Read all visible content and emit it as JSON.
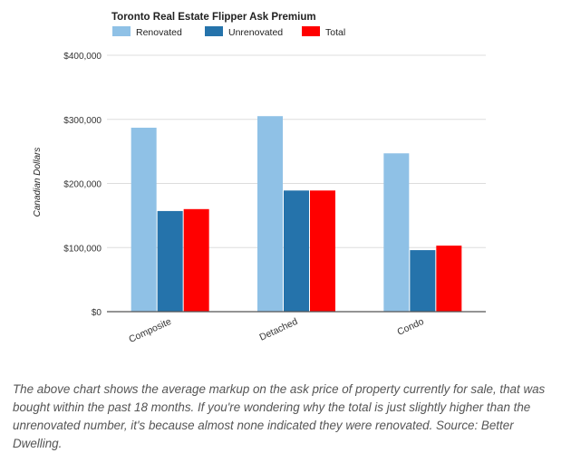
{
  "chart_data": {
    "type": "bar",
    "title": "Toronto Real Estate Flipper Ask Premium",
    "xlabel": "",
    "ylabel": "Canadian Dollars",
    "categories": [
      "Composite",
      "Detached",
      "Condo"
    ],
    "series": [
      {
        "name": "Renovated",
        "color": "#8fc1e6",
        "values": [
          287000,
          305000,
          247000
        ]
      },
      {
        "name": "Unrenovated",
        "color": "#2573ab",
        "values": [
          157000,
          189000,
          96000
        ]
      },
      {
        "name": "Total",
        "color": "#ff0000",
        "values": [
          160000,
          189000,
          103000
        ]
      }
    ],
    "ylim": [
      0,
      400000
    ],
    "yticks": [
      0,
      100000,
      200000,
      300000,
      400000
    ],
    "ytick_labels": [
      "$0",
      "$100,000",
      "$200,000",
      "$300,000",
      "$400,000"
    ],
    "legend_position": "top-left",
    "grid": true
  },
  "caption": "The above chart shows the average markup on the ask price of property currently for sale, that was bought within the past 18 months. If you're wondering why the total is just slightly higher than the unrenovated number, it's because almost none indicated they were renovated. Source: Better Dwelling."
}
